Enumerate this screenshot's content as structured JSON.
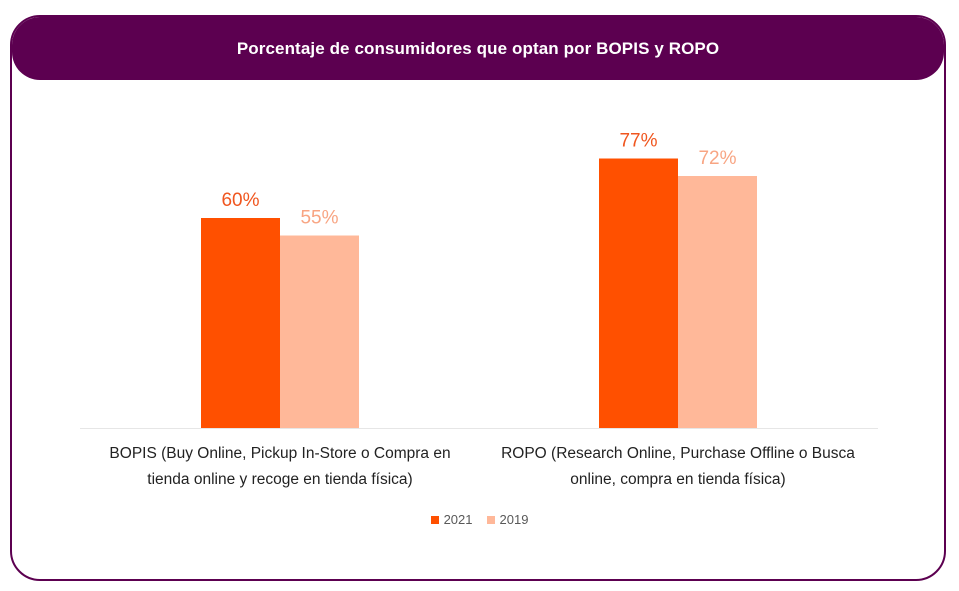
{
  "colors": {
    "frame": "#5c0050",
    "series_2021": "#ff5000",
    "series_2019": "#ffb899",
    "label_2021": "#f0561f",
    "label_2019": "#f8a583"
  },
  "chart_data": {
    "type": "bar",
    "title": "Porcentaje de consumidores que optan por BOPIS y ROPO",
    "categories": [
      "BOPIS (Buy Online, Pickup In-Store o Compra en tienda online y recoge en tienda física)",
      "ROPO (Research Online, Purchase Offline o Busca online, compra en tienda física)"
    ],
    "series": [
      {
        "name": "2021",
        "values": [
          60,
          77
        ],
        "labels": [
          "60%",
          "77%"
        ]
      },
      {
        "name": "2019",
        "values": [
          55,
          72
        ],
        "labels": [
          "55%",
          "72%"
        ]
      }
    ],
    "ylim": [
      0,
      100
    ],
    "grid": false,
    "legend": "bottom"
  }
}
